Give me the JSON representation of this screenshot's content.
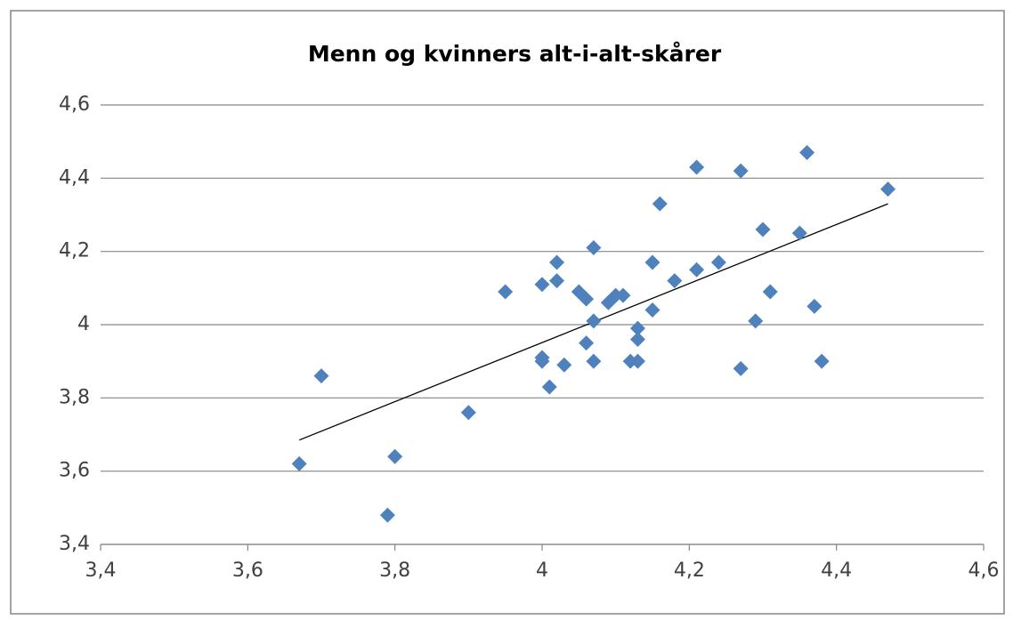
{
  "chart_data": {
    "type": "scatter",
    "title": "Menn og kvinners alt-i-alt-skårer",
    "color": "#4f81bd",
    "x": [
      3.67,
      3.7,
      3.79,
      3.8,
      3.9,
      3.95,
      4.0,
      4.0,
      4.0,
      4.01,
      4.02,
      4.02,
      4.03,
      4.05,
      4.06,
      4.06,
      4.07,
      4.07,
      4.07,
      4.09,
      4.1,
      4.11,
      4.12,
      4.13,
      4.13,
      4.13,
      4.15,
      4.15,
      4.16,
      4.18,
      4.21,
      4.21,
      4.24,
      4.27,
      4.27,
      4.29,
      4.3,
      4.31,
      4.35,
      4.36,
      4.37,
      4.38,
      4.47
    ],
    "values": [
      3.62,
      3.86,
      3.48,
      3.64,
      3.76,
      4.09,
      4.11,
      3.91,
      3.9,
      3.83,
      4.17,
      4.12,
      3.89,
      4.09,
      4.07,
      3.95,
      4.21,
      4.01,
      3.9,
      4.06,
      4.08,
      4.08,
      3.9,
      3.99,
      3.96,
      3.9,
      4.17,
      4.04,
      4.33,
      4.12,
      4.43,
      4.15,
      4.17,
      4.42,
      3.88,
      4.01,
      4.26,
      4.09,
      4.25,
      4.47,
      4.05,
      3.9,
      4.37
    ],
    "trendline": {
      "x": [
        3.67,
        4.47
      ],
      "values": [
        3.685,
        4.33
      ],
      "color": "#000000"
    },
    "xlim": [
      3.4,
      4.6
    ],
    "xticks": [
      {
        "value": 3.4,
        "label": "3,4"
      },
      {
        "value": 3.6,
        "label": "3,6"
      },
      {
        "value": 3.8,
        "label": "3,8"
      },
      4,
      {
        "value": 4.2,
        "label": "4,2"
      },
      {
        "value": 4.4,
        "label": "4,4"
      },
      {
        "value": 4.6,
        "label": "4,6"
      }
    ],
    "ylim": [
      3.4,
      4.6
    ],
    "yticks": [
      {
        "value": 3.4,
        "label": "3,4"
      },
      {
        "value": 3.6,
        "label": "3,6"
      },
      {
        "value": 3.8,
        "label": "3,8"
      },
      4,
      {
        "value": 4.2,
        "label": "4,2"
      },
      {
        "value": 4.4,
        "label": "4,4"
      },
      {
        "value": 4.6,
        "label": "4,6"
      }
    ],
    "grid": true
  }
}
